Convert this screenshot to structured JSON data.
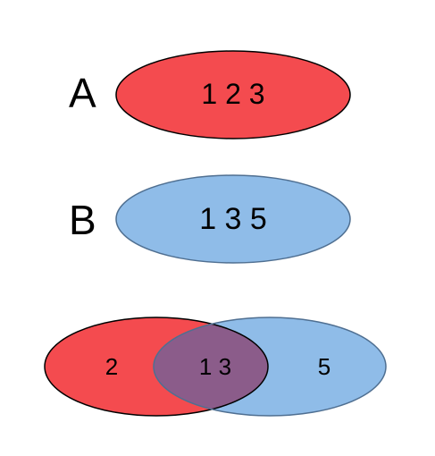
{
  "colors": {
    "set_a": "#f44b4f",
    "set_b": "#8fbce8",
    "overlap": "#8b5c8a",
    "stroke_a": "#000000",
    "stroke_b": "#4f6f91"
  },
  "set_a": {
    "label": "A",
    "members": "1 2 3"
  },
  "set_b": {
    "label": "B",
    "members": "1 3 5"
  },
  "union": {
    "only_a": "2",
    "intersection": "1 3",
    "only_b": "5"
  }
}
